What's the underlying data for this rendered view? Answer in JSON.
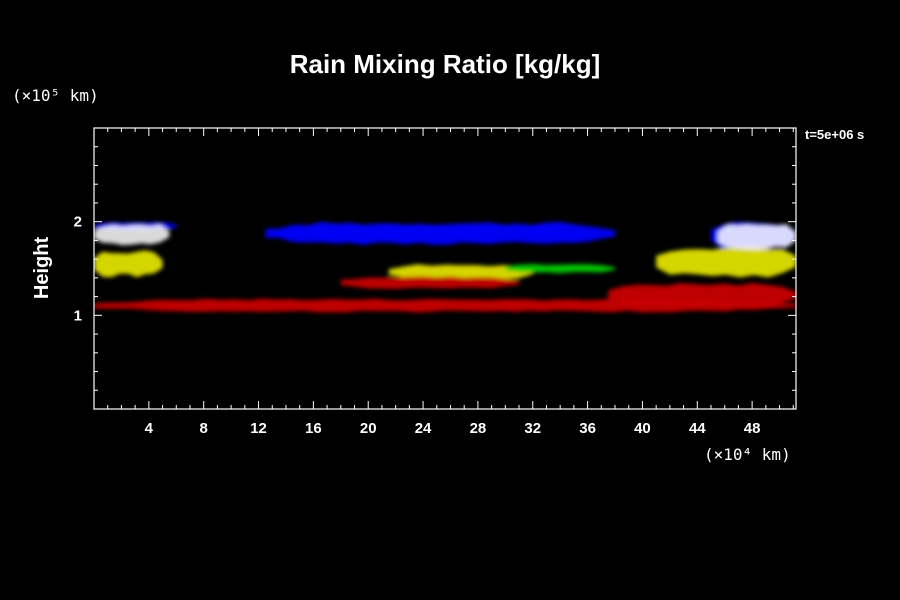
{
  "colors": {
    "background": "#000000",
    "foreground": "#ffffff",
    "rain_low": "#c80000",
    "rain_mid": "#e0e000",
    "rain_high": "#ffffff",
    "rain_green": "#00cc00",
    "cloud_blue": "#0000ff"
  },
  "chart_data": {
    "type": "heatmap",
    "title": "Rain Mixing Ratio [kg/kg]",
    "xlabel": "",
    "ylabel": "Height",
    "x_unit": "(×10⁴ km)",
    "y_unit": "(×10⁵ km)",
    "time_label": "t=5e+06 s",
    "xlim": [
      0,
      51.2
    ],
    "ylim": [
      0,
      3
    ],
    "x_ticks": [
      4,
      8,
      12,
      16,
      20,
      24,
      28,
      32,
      36,
      40,
      44,
      48
    ],
    "x_tick_labels": [
      "4",
      "8",
      "12",
      "16",
      "20",
      "24",
      "28",
      "32",
      "36",
      "40",
      "44",
      "48"
    ],
    "x_minor_step": 1,
    "y_ticks": [
      1,
      2
    ],
    "y_tick_labels": [
      "1",
      "2"
    ],
    "y_minor_step": 0.2,
    "grid": false,
    "regions": [
      {
        "name": "upper cloud left",
        "color": "cloud_blue",
        "x": [
          0,
          6
        ],
        "y": [
          1.9,
          2.0
        ]
      },
      {
        "name": "upper cloud centre",
        "color": "cloud_blue",
        "x": [
          12.5,
          38
        ],
        "y": [
          1.75,
          2.0
        ]
      },
      {
        "name": "upper cloud right",
        "color": "cloud_blue",
        "x": [
          45,
          51.2
        ],
        "y": [
          1.7,
          2.0
        ]
      },
      {
        "name": "rain core left",
        "color": "rain_high",
        "x": [
          0,
          5.5
        ],
        "y": [
          1.75,
          1.98
        ]
      },
      {
        "name": "rain band left",
        "color": "rain_mid",
        "x": [
          0,
          5
        ],
        "y": [
          1.4,
          1.7
        ]
      },
      {
        "name": "rain band centre",
        "color": "rain_mid",
        "x": [
          21.5,
          32
        ],
        "y": [
          1.38,
          1.55
        ]
      },
      {
        "name": "rain band right",
        "color": "rain_mid",
        "x": [
          41,
          51.2
        ],
        "y": [
          1.4,
          1.75
        ]
      },
      {
        "name": "rain core right",
        "color": "rain_high",
        "x": [
          45.5,
          51.2
        ],
        "y": [
          1.7,
          1.98
        ]
      },
      {
        "name": "green band",
        "color": "rain_green",
        "x": [
          30,
          38
        ],
        "y": [
          1.45,
          1.55
        ]
      },
      {
        "name": "red band centre",
        "color": "rain_low",
        "x": [
          18,
          31
        ],
        "y": [
          1.28,
          1.42
        ]
      },
      {
        "name": "red band right",
        "color": "rain_low",
        "x": [
          37.5,
          51.2
        ],
        "y": [
          1.08,
          1.35
        ]
      },
      {
        "name": "red lower band",
        "color": "rain_low",
        "x": [
          0,
          51.2
        ],
        "y": [
          1.03,
          1.18
        ]
      }
    ]
  }
}
